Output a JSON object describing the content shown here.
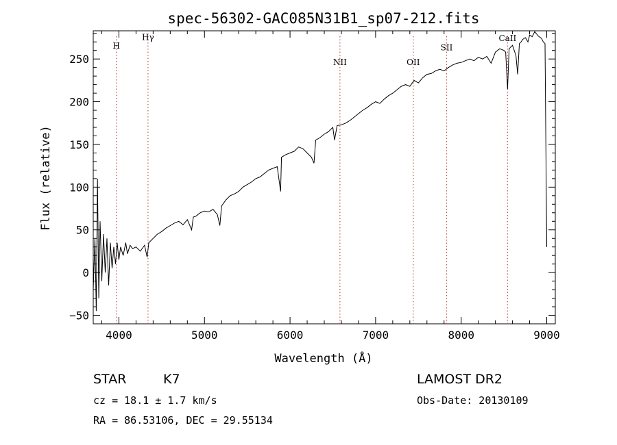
{
  "chart_data": {
    "type": "line",
    "title": "spec-56302-GAC085N31B1_sp07-212.fits",
    "xlabel": "Wavelength (Å)",
    "ylabel": "Flux (relative)",
    "xlim": [
      3700,
      9100
    ],
    "ylim": [
      -60,
      283
    ],
    "xticks": [
      4000,
      5000,
      6000,
      7000,
      8000,
      9000
    ],
    "yticks": [
      -50,
      0,
      50,
      100,
      150,
      200,
      250
    ],
    "grid": false,
    "series": [
      {
        "color": "#000000",
        "x": [
          3700,
          3720,
          3735,
          3750,
          3765,
          3780,
          3800,
          3820,
          3840,
          3860,
          3880,
          3900,
          3920,
          3940,
          3960,
          3980,
          4000,
          4020,
          4050,
          4080,
          4100,
          4130,
          4160,
          4200,
          4250,
          4300,
          4330,
          4350,
          4400,
          4450,
          4500,
          4550,
          4600,
          4650,
          4700,
          4750,
          4800,
          4850,
          4870,
          4900,
          4950,
          5000,
          5050,
          5100,
          5150,
          5180,
          5200,
          5250,
          5300,
          5350,
          5400,
          5450,
          5500,
          5550,
          5600,
          5650,
          5700,
          5750,
          5800,
          5850,
          5890,
          5900,
          5950,
          6000,
          6050,
          6100,
          6150,
          6200,
          6250,
          6280,
          6300,
          6350,
          6400,
          6450,
          6500,
          6520,
          6550,
          6600,
          6650,
          6700,
          6750,
          6800,
          6850,
          6900,
          6950,
          7000,
          7050,
          7100,
          7150,
          7200,
          7250,
          7300,
          7350,
          7400,
          7450,
          7500,
          7550,
          7600,
          7650,
          7700,
          7750,
          7800,
          7850,
          7900,
          7950,
          8000,
          8050,
          8100,
          8150,
          8200,
          8250,
          8300,
          8350,
          8400,
          8450,
          8500,
          8520,
          8542,
          8560,
          8600,
          8640,
          8660,
          8680,
          8700,
          8720,
          8750,
          8780,
          8800,
          8830,
          8860,
          8900,
          8940,
          8960,
          8980,
          9000
        ],
        "y": [
          -20,
          40,
          -45,
          110,
          -30,
          60,
          -10,
          45,
          0,
          40,
          -15,
          35,
          5,
          30,
          10,
          35,
          15,
          30,
          20,
          35,
          22,
          32,
          28,
          30,
          25,
          32,
          18,
          35,
          40,
          45,
          48,
          52,
          55,
          58,
          60,
          56,
          62,
          50,
          65,
          66,
          70,
          72,
          71,
          74,
          68,
          55,
          78,
          85,
          90,
          92,
          95,
          100,
          103,
          106,
          110,
          112,
          116,
          120,
          122,
          124,
          95,
          135,
          138,
          140,
          142,
          147,
          145,
          140,
          135,
          128,
          155,
          158,
          162,
          165,
          170,
          155,
          172,
          173,
          175,
          178,
          182,
          186,
          190,
          193,
          197,
          200,
          198,
          203,
          207,
          210,
          214,
          218,
          220,
          218,
          225,
          222,
          228,
          232,
          233,
          236,
          238,
          236,
          240,
          243,
          245,
          246,
          248,
          250,
          248,
          252,
          250,
          253,
          245,
          258,
          262,
          260,
          258,
          215,
          262,
          266,
          254,
          232,
          268,
          270,
          273,
          275,
          270,
          278,
          276,
          282,
          277,
          274,
          270,
          268,
          30
        ]
      }
    ],
    "annotations": [
      {
        "x": 3970,
        "label": "H",
        "label_y": 262
      },
      {
        "x": 4340,
        "label": "Hγ",
        "label_y": 272
      },
      {
        "x": 6583,
        "label": "NII",
        "label_y": 243
      },
      {
        "x": 7440,
        "label": "OII",
        "label_y": 243
      },
      {
        "x": 7830,
        "label": "SII",
        "label_y": 260
      },
      {
        "x": 8542,
        "label": "CaII",
        "label_y": 271
      }
    ],
    "annotation_color": "#c0504d"
  },
  "info": {
    "class": "STAR",
    "subclass": "K7",
    "cz": "cz = 18.1 ± 1.7 km/s",
    "radec": "RA =  86.53106, DEC =  29.55134",
    "survey": "LAMOST DR2",
    "obsdate": "Obs-Date: 20130109"
  }
}
